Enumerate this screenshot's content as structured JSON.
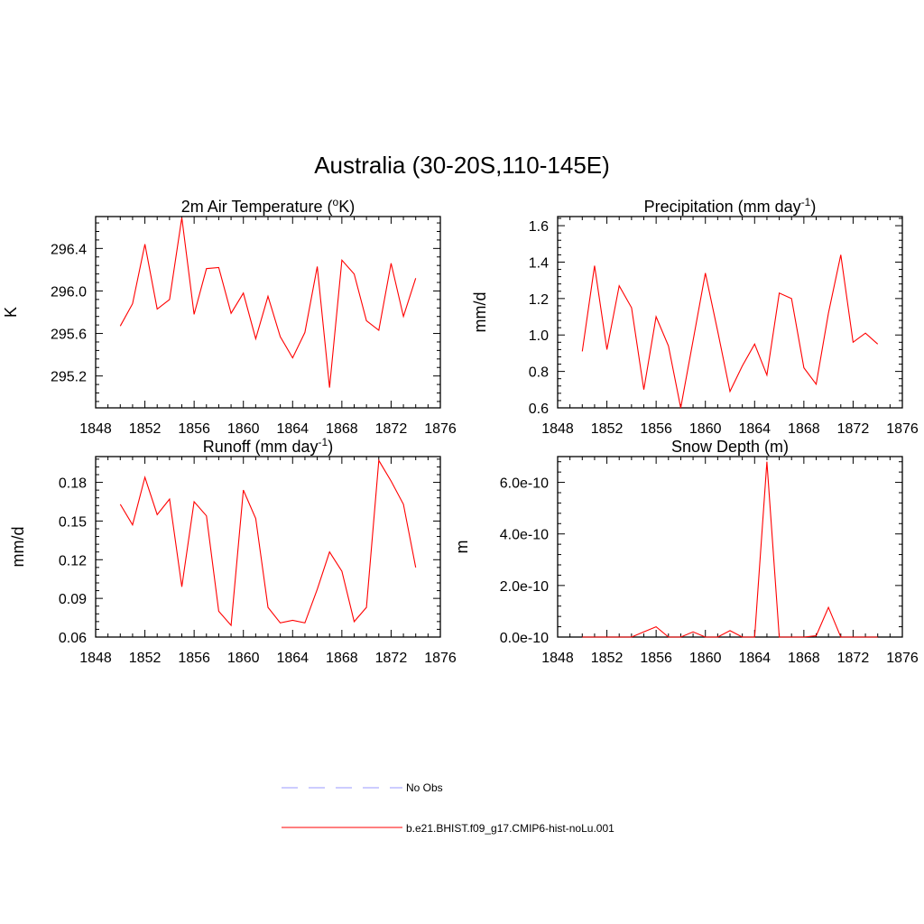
{
  "title": "Australia (30-20S,110-145E)",
  "colors": {
    "model": "#ff0000",
    "obs": "#9999ff",
    "axis": "#000000"
  },
  "legend": {
    "items": [
      {
        "label": "No Obs",
        "style": "dashed",
        "color": "#9999ff"
      },
      {
        "label": "b.e21.BHIST.f09_g17.CMIP6-hist-noLu.001",
        "style": "solid",
        "color": "#ff0000"
      }
    ]
  },
  "chart_data": [
    {
      "type": "line",
      "title": "2m Air Temperature (",
      "title_sup": "o",
      "title_end": "K)",
      "ylabel": "K",
      "xlim": [
        1848,
        1876
      ],
      "ylim": [
        294.9,
        296.7
      ],
      "xticks": [
        "1848",
        "1852",
        "1856",
        "1860",
        "1864",
        "1868",
        "1872",
        "1876"
      ],
      "yticks": [
        "295.2",
        "295.6",
        "296.0",
        "296.4"
      ],
      "ytick_values": [
        295.2,
        295.6,
        296.0,
        296.4
      ],
      "x": [
        1850,
        1851,
        1852,
        1853,
        1854,
        1855,
        1856,
        1857,
        1858,
        1859,
        1860,
        1861,
        1862,
        1863,
        1864,
        1865,
        1866,
        1867,
        1868,
        1869,
        1870,
        1871,
        1872,
        1873,
        1874
      ],
      "series": [
        {
          "values": [
            295.67,
            295.88,
            296.44,
            295.83,
            295.92,
            296.69,
            295.78,
            296.21,
            296.22,
            295.79,
            295.98,
            295.55,
            295.95,
            295.57,
            295.37,
            295.61,
            296.23,
            295.09,
            296.29,
            296.16,
            295.72,
            295.63,
            296.26,
            295.76,
            296.12
          ]
        }
      ]
    },
    {
      "type": "line",
      "title": "Precipitation (mm day",
      "title_sup": "-1",
      "title_end": ")",
      "ylabel": "mm/d",
      "xlim": [
        1848,
        1876
      ],
      "ylim": [
        0.6,
        1.65
      ],
      "xticks": [
        "1848",
        "1852",
        "1856",
        "1860",
        "1864",
        "1868",
        "1872",
        "1876"
      ],
      "yticks": [
        "0.6",
        "0.8",
        "1.0",
        "1.2",
        "1.4",
        "1.6"
      ],
      "ytick_values": [
        0.6,
        0.8,
        1.0,
        1.2,
        1.4,
        1.6
      ],
      "x": [
        1850,
        1851,
        1852,
        1853,
        1854,
        1855,
        1856,
        1857,
        1858,
        1859,
        1860,
        1861,
        1862,
        1863,
        1864,
        1865,
        1866,
        1867,
        1868,
        1869,
        1870,
        1871,
        1872,
        1873,
        1874
      ],
      "series": [
        {
          "values": [
            0.91,
            1.38,
            0.92,
            1.27,
            1.15,
            0.7,
            1.1,
            0.94,
            0.6,
            0.97,
            1.34,
            1.02,
            0.69,
            0.83,
            0.95,
            0.78,
            1.23,
            1.2,
            0.82,
            0.73,
            1.12,
            1.44,
            0.96,
            1.01,
            0.95
          ]
        }
      ]
    },
    {
      "type": "line",
      "title": "Runoff (mm day",
      "title_sup": "-1",
      "title_end": ")",
      "ylabel": "mm/d",
      "xlim": [
        1848,
        1876
      ],
      "ylim": [
        0.06,
        0.2
      ],
      "xticks": [
        "1848",
        "1852",
        "1856",
        "1860",
        "1864",
        "1868",
        "1872",
        "1876"
      ],
      "yticks": [
        "0.06",
        "0.09",
        "0.12",
        "0.15",
        "0.18"
      ],
      "ytick_values": [
        0.06,
        0.09,
        0.12,
        0.15,
        0.18
      ],
      "x": [
        1850,
        1851,
        1852,
        1853,
        1854,
        1855,
        1856,
        1857,
        1858,
        1859,
        1860,
        1861,
        1862,
        1863,
        1864,
        1865,
        1866,
        1867,
        1868,
        1869,
        1870,
        1871,
        1872,
        1873,
        1874
      ],
      "series": [
        {
          "values": [
            0.163,
            0.147,
            0.184,
            0.155,
            0.167,
            0.099,
            0.165,
            0.154,
            0.08,
            0.069,
            0.174,
            0.152,
            0.083,
            0.071,
            0.073,
            0.071,
            0.097,
            0.126,
            0.111,
            0.072,
            0.083,
            0.197,
            0.181,
            0.163,
            0.114
          ]
        }
      ]
    },
    {
      "type": "line",
      "title": "Snow Depth (m)",
      "title_sup": "",
      "title_end": "",
      "ylabel": "m",
      "xlim": [
        1848,
        1876
      ],
      "ylim": [
        0,
        7e-10
      ],
      "xticks": [
        "1848",
        "1852",
        "1856",
        "1860",
        "1864",
        "1868",
        "1872",
        "1876"
      ],
      "yticks": [
        "0.0e-10",
        "2.0e-10",
        "4.0e-10",
        "6.0e-10"
      ],
      "ytick_values": [
        0,
        2e-10,
        4e-10,
        6e-10
      ],
      "x": [
        1850,
        1851,
        1852,
        1853,
        1854,
        1855,
        1856,
        1857,
        1858,
        1859,
        1860,
        1861,
        1862,
        1863,
        1864,
        1865,
        1866,
        1867,
        1868,
        1869,
        1870,
        1871,
        1872,
        1873,
        1874
      ],
      "series": [
        {
          "values": [
            0,
            0,
            0,
            0,
            0,
            2e-11,
            4e-11,
            0,
            0,
            2e-11,
            0,
            0,
            2.5e-11,
            0,
            0,
            6.8e-10,
            0,
            0,
            0,
            5e-12,
            1.15e-10,
            0,
            0,
            0,
            0
          ]
        }
      ]
    }
  ]
}
